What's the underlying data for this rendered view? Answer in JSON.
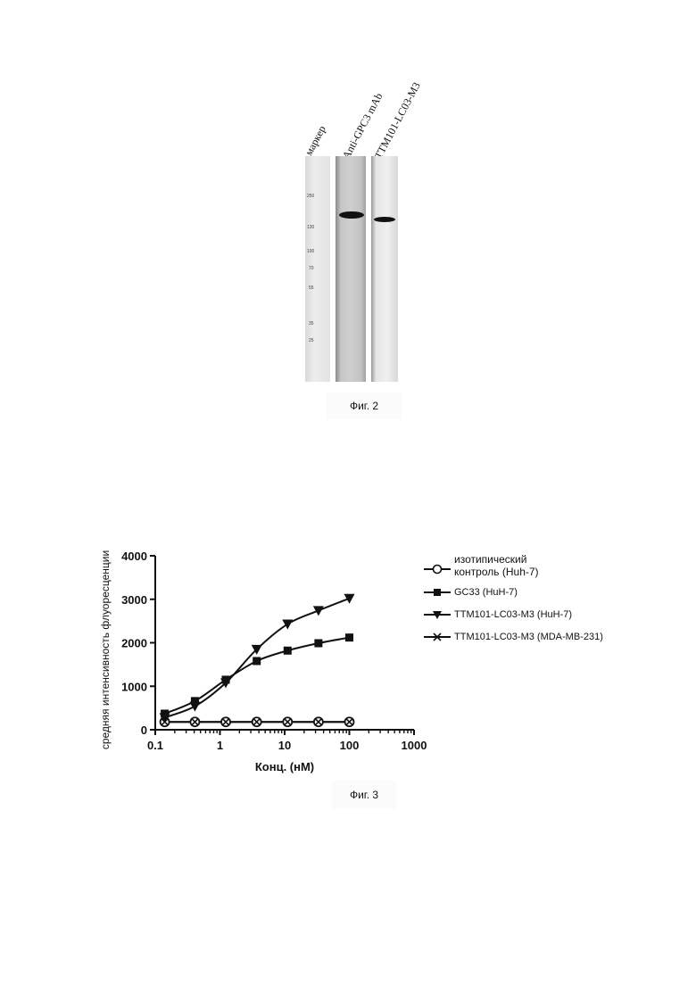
{
  "figure2": {
    "lane_labels": [
      "маркер",
      "Anti-GPC3 mAb",
      "TTM101-LC03-M3"
    ],
    "marker_weights": [
      "250",
      "130",
      "100",
      "70",
      "55",
      "35",
      "25"
    ],
    "caption": "Фиг. 2"
  },
  "figure3": {
    "caption": "Фиг. 3",
    "legend": [
      {
        "name": "изотипический контроль (Huh-7)",
        "line1": "изотипический",
        "line2": "контроль (Huh-7)",
        "symbol": "circle-open"
      },
      {
        "name": "GC33 (HuH-7)",
        "symbol": "square-filled"
      },
      {
        "name": "TTM101-LC03-M3 (HuH-7)",
        "symbol": "triangle-down-filled"
      },
      {
        "name": "TTM101-LC03-M3 (MDA-MB-231)",
        "symbol": "x"
      }
    ]
  },
  "chart_data": {
    "type": "scatter",
    "xlabel": "Конц. (нМ)",
    "ylabel": "средняя интенсивность флуоресценции",
    "x_scale": "log",
    "xlim": [
      0.1,
      1000
    ],
    "ylim": [
      0,
      4000
    ],
    "x_ticks": [
      "0.1",
      "1",
      "10",
      "100",
      "1000"
    ],
    "y_ticks": [
      "0",
      "1000",
      "2000",
      "3000",
      "4000"
    ],
    "x": [
      0.14,
      0.41,
      1.23,
      3.7,
      11.1,
      33.3,
      100
    ],
    "series": [
      {
        "name": "изотипический контроль (Huh-7)",
        "values": [
          180,
          180,
          180,
          180,
          180,
          180,
          180
        ]
      },
      {
        "name": "GC33 (HuH-7)",
        "values": [
          370,
          660,
          1150,
          1580,
          1820,
          1990,
          2120
        ]
      },
      {
        "name": "TTM101-LC03-M3 (HuH-7)",
        "values": [
          280,
          540,
          1080,
          1850,
          2430,
          2740,
          3020
        ]
      },
      {
        "name": "TTM101-LC03-M3 (MDA-MB-231)",
        "values": [
          180,
          180,
          180,
          180,
          180,
          180,
          180
        ]
      }
    ],
    "grid": false,
    "legend_position": "right"
  }
}
